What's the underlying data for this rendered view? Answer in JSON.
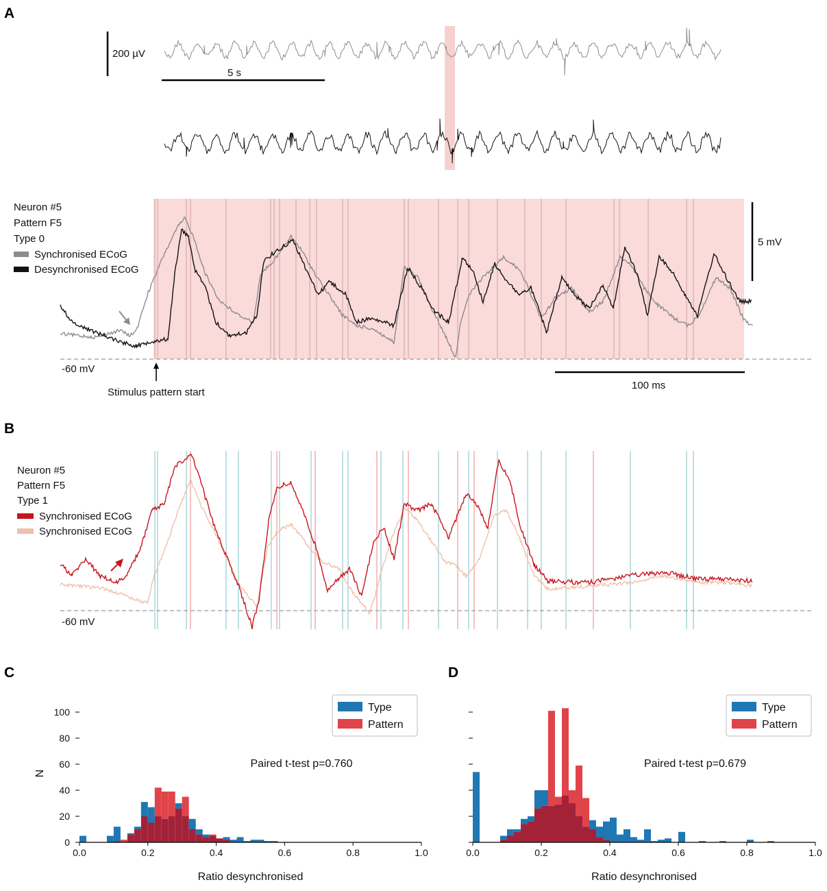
{
  "panels": {
    "a": "A",
    "b": "B",
    "c": "C",
    "d": "D"
  },
  "colors": {
    "sync_gray": "#8c8c8c",
    "desync_black": "#111111",
    "stim_pink": "#f7d0d0",
    "red": "#c8141e",
    "peach": "#f0c0aa",
    "type_blue": "#1f77b4",
    "pattern_red": "#e0444a",
    "overlap": "#a32238",
    "vline_teal": "#9ccfcf",
    "vline_pink": "#f0a0a0",
    "vline_gray": "#c09090"
  },
  "panel_a": {
    "ecog_scale_label": "200 µV",
    "ecog_time_label": "5 s",
    "legend": [
      "Neuron #5",
      "Pattern F5",
      "Type 0"
    ],
    "series": [
      "Synchronised ECoG",
      "Desynchronised ECoG"
    ],
    "voltage_scale_label": "5 mV",
    "baseline_label": "-60 mV",
    "stimulus_label": "Stimulus pattern start",
    "time_scale_label": "100 ms"
  },
  "panel_b": {
    "legend": [
      "Neuron #5",
      "Pattern F5",
      "Type 1"
    ],
    "series": [
      "Synchronised ECoG",
      "Synchronised ECoG"
    ],
    "baseline_label": "-60 mV"
  },
  "chart_data": [
    {
      "id": "C",
      "type": "bar",
      "title": "",
      "xlabel": "Ratio desynchronised",
      "ylabel": "N",
      "xlim": [
        0.0,
        1.0
      ],
      "ylim": [
        0,
        110
      ],
      "xticks": [
        "0.0",
        "0.2",
        "0.4",
        "0.6",
        "0.8",
        "1.0"
      ],
      "yticks": [
        "0",
        "20",
        "40",
        "60",
        "80",
        "100"
      ],
      "legend": [
        "Type",
        "Pattern"
      ],
      "annotation": "Paired t-test p=0.760",
      "series": [
        {
          "name": "Type",
          "bin_width": 0.02,
          "bins": [
            [
              0.0,
              5
            ],
            [
              0.08,
              5
            ],
            [
              0.1,
              12
            ],
            [
              0.14,
              7
            ],
            [
              0.16,
              12
            ],
            [
              0.18,
              31
            ],
            [
              0.2,
              27
            ],
            [
              0.22,
              20
            ],
            [
              0.24,
              18
            ],
            [
              0.26,
              20
            ],
            [
              0.28,
              30
            ],
            [
              0.3,
              20
            ],
            [
              0.32,
              18
            ],
            [
              0.34,
              10
            ],
            [
              0.36,
              6
            ],
            [
              0.38,
              5
            ],
            [
              0.4,
              3
            ],
            [
              0.42,
              4
            ],
            [
              0.44,
              2
            ],
            [
              0.46,
              4
            ],
            [
              0.48,
              1
            ],
            [
              0.5,
              2
            ],
            [
              0.52,
              2
            ],
            [
              0.54,
              1
            ],
            [
              0.56,
              1
            ]
          ]
        },
        {
          "name": "Pattern",
          "bin_width": 0.02,
          "bins": [
            [
              0.1,
              1
            ],
            [
              0.12,
              2
            ],
            [
              0.14,
              6
            ],
            [
              0.16,
              10
            ],
            [
              0.18,
              20
            ],
            [
              0.2,
              15
            ],
            [
              0.22,
              42
            ],
            [
              0.24,
              39
            ],
            [
              0.26,
              39
            ],
            [
              0.28,
              26
            ],
            [
              0.3,
              35
            ],
            [
              0.32,
              10
            ],
            [
              0.34,
              6
            ],
            [
              0.36,
              4
            ],
            [
              0.38,
              6
            ],
            [
              0.4,
              3
            ],
            [
              0.42,
              2
            ]
          ]
        }
      ]
    },
    {
      "id": "D",
      "type": "bar",
      "title": "",
      "xlabel": "Ratio desynchronised",
      "ylabel": "",
      "xlim": [
        0.0,
        1.0
      ],
      "ylim": [
        0,
        110
      ],
      "xticks": [
        "0.0",
        "0.2",
        "0.4",
        "0.6",
        "0.8",
        "1.0"
      ],
      "yticks": [],
      "legend": [
        "Type",
        "Pattern"
      ],
      "annotation": "Paired t-test p=0.679",
      "series": [
        {
          "name": "Type",
          "bin_width": 0.02,
          "bins": [
            [
              0.0,
              54
            ],
            [
              0.08,
              5
            ],
            [
              0.1,
              10
            ],
            [
              0.12,
              10
            ],
            [
              0.14,
              18
            ],
            [
              0.16,
              20
            ],
            [
              0.18,
              40
            ],
            [
              0.2,
              40
            ],
            [
              0.22,
              28
            ],
            [
              0.24,
              29
            ],
            [
              0.26,
              36
            ],
            [
              0.28,
              30
            ],
            [
              0.3,
              20
            ],
            [
              0.32,
              12
            ],
            [
              0.34,
              17
            ],
            [
              0.36,
              12
            ],
            [
              0.38,
              16
            ],
            [
              0.4,
              19
            ],
            [
              0.42,
              6
            ],
            [
              0.44,
              10
            ],
            [
              0.46,
              4
            ],
            [
              0.48,
              2
            ],
            [
              0.5,
              10
            ],
            [
              0.52,
              1
            ],
            [
              0.54,
              2
            ],
            [
              0.56,
              3
            ],
            [
              0.6,
              8
            ],
            [
              0.66,
              1
            ],
            [
              0.72,
              1
            ],
            [
              0.8,
              2
            ],
            [
              0.86,
              1
            ]
          ]
        },
        {
          "name": "Pattern",
          "bin_width": 0.02,
          "bins": [
            [
              0.08,
              2
            ],
            [
              0.1,
              5
            ],
            [
              0.12,
              8
            ],
            [
              0.14,
              14
            ],
            [
              0.16,
              16
            ],
            [
              0.18,
              26
            ],
            [
              0.2,
              28
            ],
            [
              0.22,
              101
            ],
            [
              0.24,
              35
            ],
            [
              0.26,
              103
            ],
            [
              0.28,
              40
            ],
            [
              0.3,
              59
            ],
            [
              0.32,
              34
            ],
            [
              0.34,
              10
            ],
            [
              0.36,
              4
            ],
            [
              0.38,
              2
            ]
          ]
        }
      ]
    }
  ]
}
